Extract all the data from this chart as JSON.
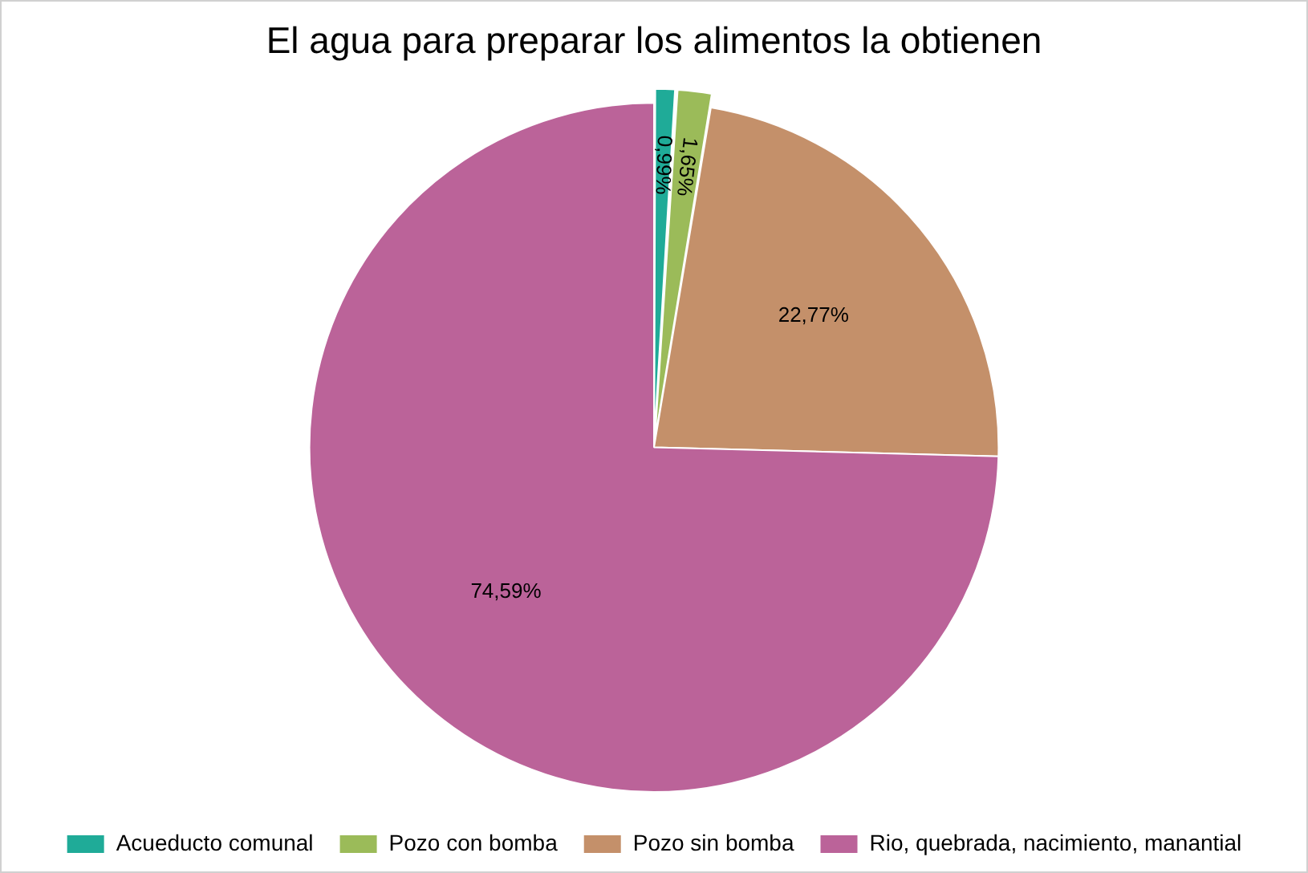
{
  "chart_data": {
    "type": "pie",
    "title": "El agua para preparar los alimentos la obtienen",
    "categories": [
      "Acueducto comunal",
      "Pozo con bomba",
      "Pozo sin bomba",
      "Rio, quebrada, nacimiento, manantial"
    ],
    "values": [
      0.99,
      1.65,
      22.77,
      74.59
    ],
    "colors": [
      "#1fab98",
      "#9bbb59",
      "#c4906a",
      "#bb6399"
    ],
    "value_labels": [
      "0,99%",
      "1,65%",
      "22,77%",
      "74,59%"
    ],
    "legend": "bottom"
  }
}
